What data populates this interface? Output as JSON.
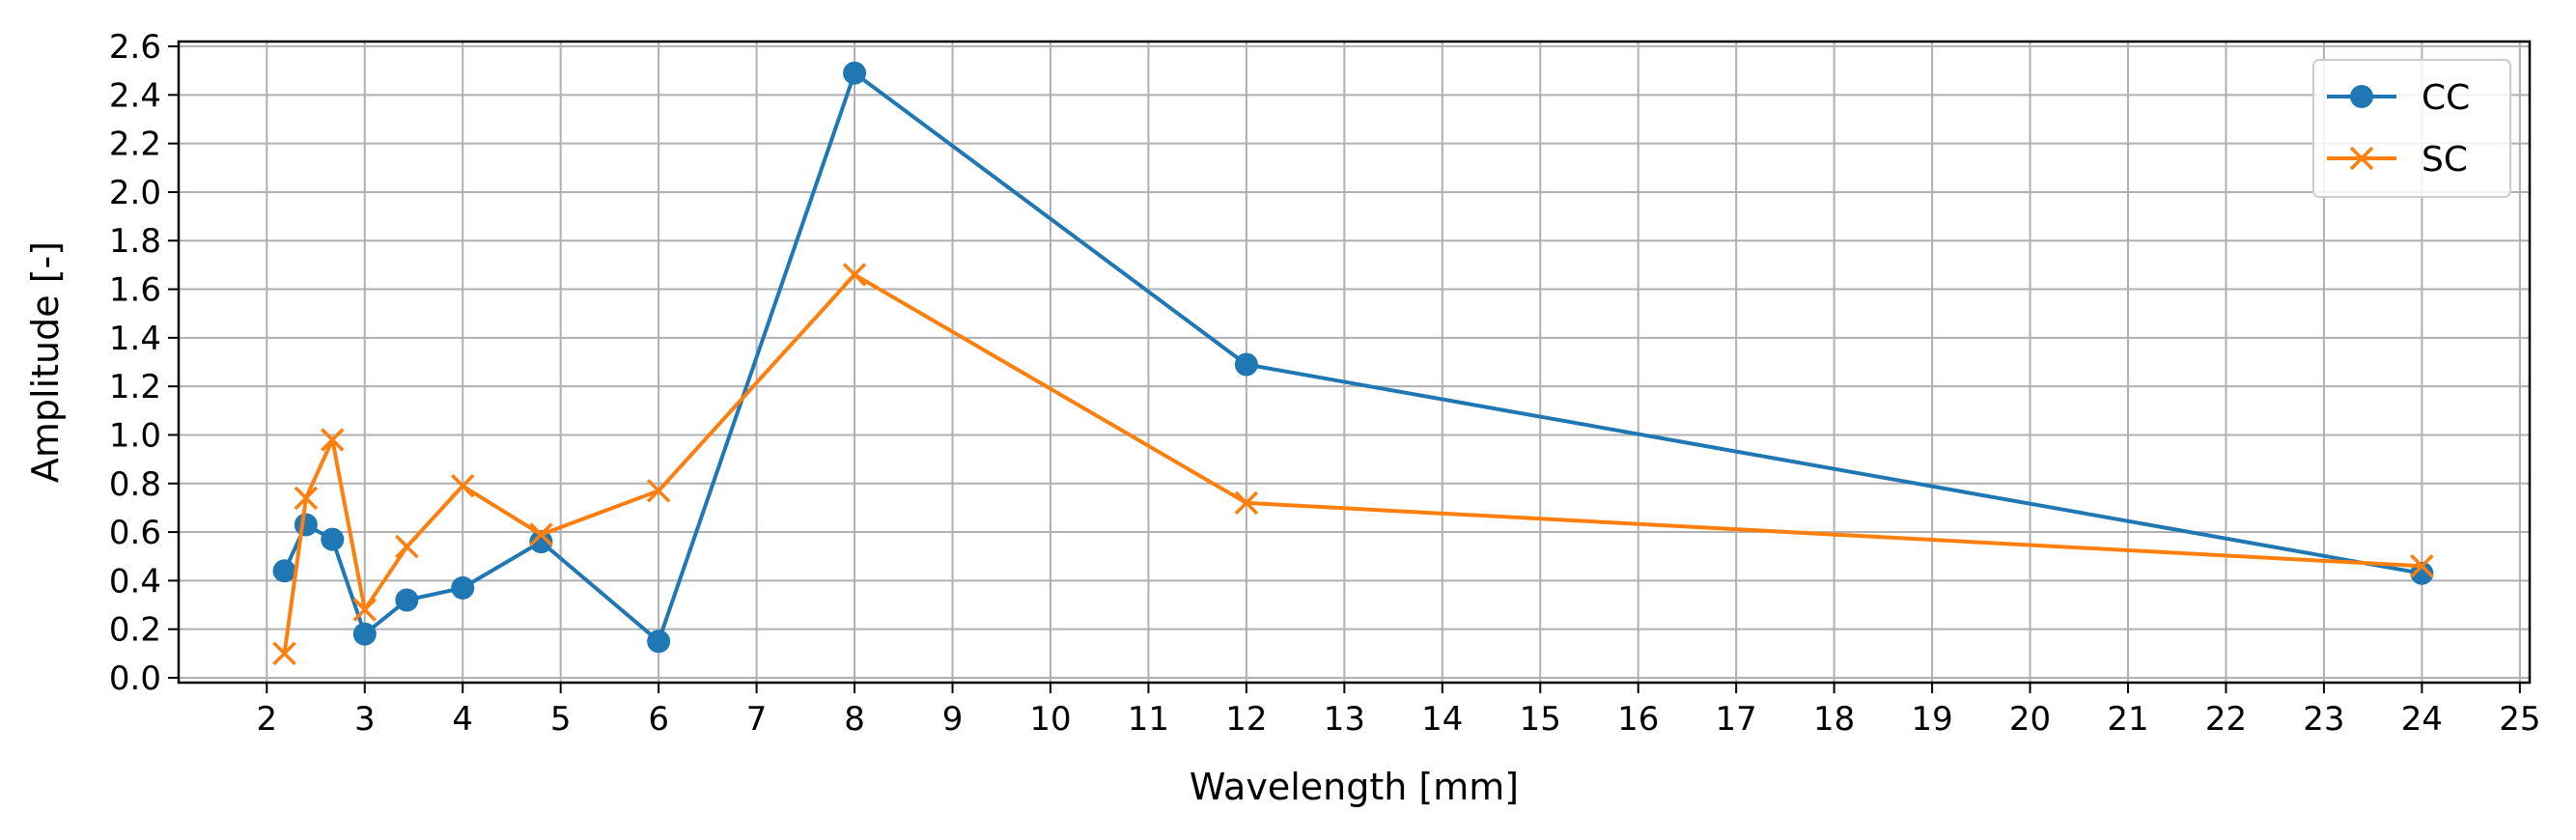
{
  "chart_data": {
    "type": "line",
    "title": "",
    "xlabel": "Wavelength [mm]",
    "ylabel": "Amplitude [-]",
    "xlim": [
      1.1,
      25.1
    ],
    "ylim": [
      -0.02,
      2.62
    ],
    "xticks": [
      "2",
      "3",
      "4",
      "5",
      "6",
      "7",
      "8",
      "9",
      "10",
      "11",
      "12",
      "13",
      "14",
      "15",
      "16",
      "17",
      "18",
      "19",
      "20",
      "21",
      "22",
      "23",
      "24",
      "25"
    ],
    "yticks": [
      "0.0",
      "0.2",
      "0.4",
      "0.6",
      "0.8",
      "1.0",
      "1.2",
      "1.4",
      "1.6",
      "1.8",
      "2.0",
      "2.2",
      "2.4",
      "2.6"
    ],
    "grid": true,
    "legend_position": "top-right",
    "x": [
      2.18,
      2.4,
      2.67,
      3.0,
      3.43,
      4.0,
      4.8,
      6.0,
      8.0,
      12.0,
      24.0
    ],
    "series": [
      {
        "name": "CC",
        "marker": "circle",
        "color": "#1f77b4",
        "values": [
          0.44,
          0.63,
          0.57,
          0.18,
          0.32,
          0.37,
          0.56,
          0.15,
          2.49,
          1.29,
          0.43
        ]
      },
      {
        "name": "SC",
        "marker": "x",
        "color": "#ff7f0e",
        "values": [
          0.1,
          0.74,
          0.98,
          0.28,
          0.54,
          0.79,
          0.59,
          0.77,
          1.66,
          0.72,
          0.46
        ]
      }
    ]
  }
}
